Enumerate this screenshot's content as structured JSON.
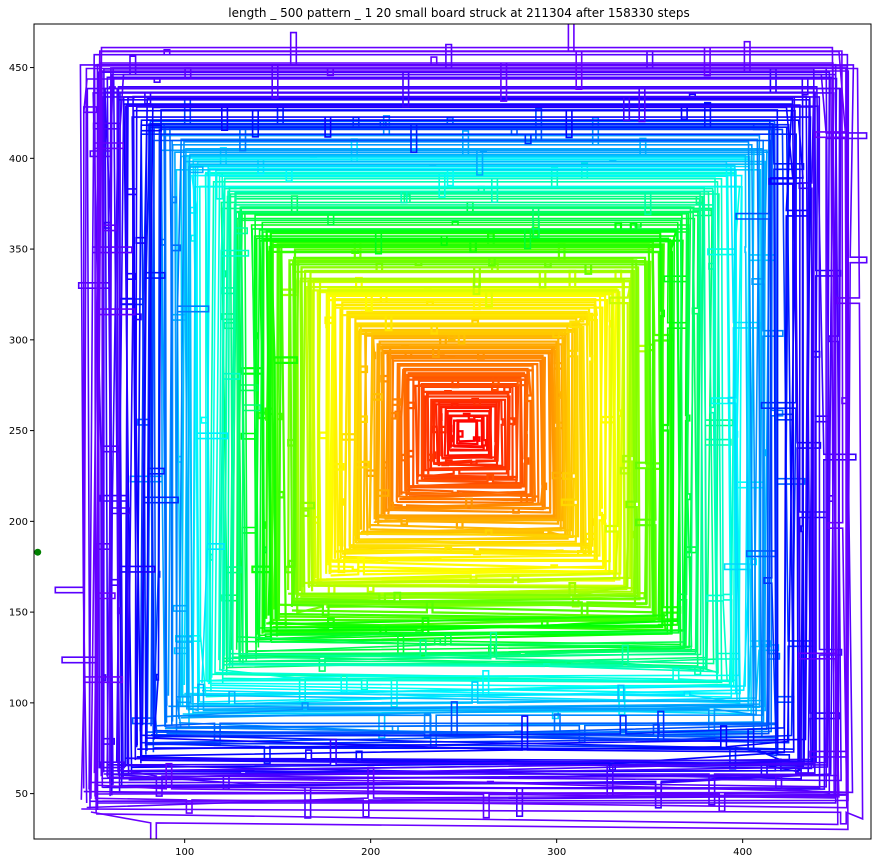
{
  "chart_data": {
    "type": "line",
    "title": "length _ 500 pattern _ 1 20 small board struck at 211304 after 158330 steps",
    "xlabel": "",
    "ylabel": "",
    "xlim": [
      19,
      469
    ],
    "ylim": [
      25,
      474
    ],
    "xticks": [
      100,
      200,
      300,
      400
    ],
    "yticks": [
      50,
      100,
      150,
      200,
      250,
      300,
      350,
      400,
      450
    ],
    "grid": false,
    "legend": "none",
    "colormap": "gist_rainbow (red at center → violet at outer edge)",
    "center": [
      252,
      249
    ],
    "start_marker": {
      "x": 21,
      "y": 183,
      "color": "#008000"
    },
    "path_description_values": {
      "innermost_halfwidth": 5,
      "outermost_halfwidth": 208,
      "total_steps": 158330,
      "struck_at": 211304
    },
    "color_stops": [
      "#ff0000",
      "#ff4000",
      "#ff8c00",
      "#ffd400",
      "#ffff00",
      "#7fff00",
      "#00ff00",
      "#00ff7f",
      "#00ffff",
      "#0090ff",
      "#0000ff",
      "#4400ff",
      "#6a00ff"
    ]
  }
}
